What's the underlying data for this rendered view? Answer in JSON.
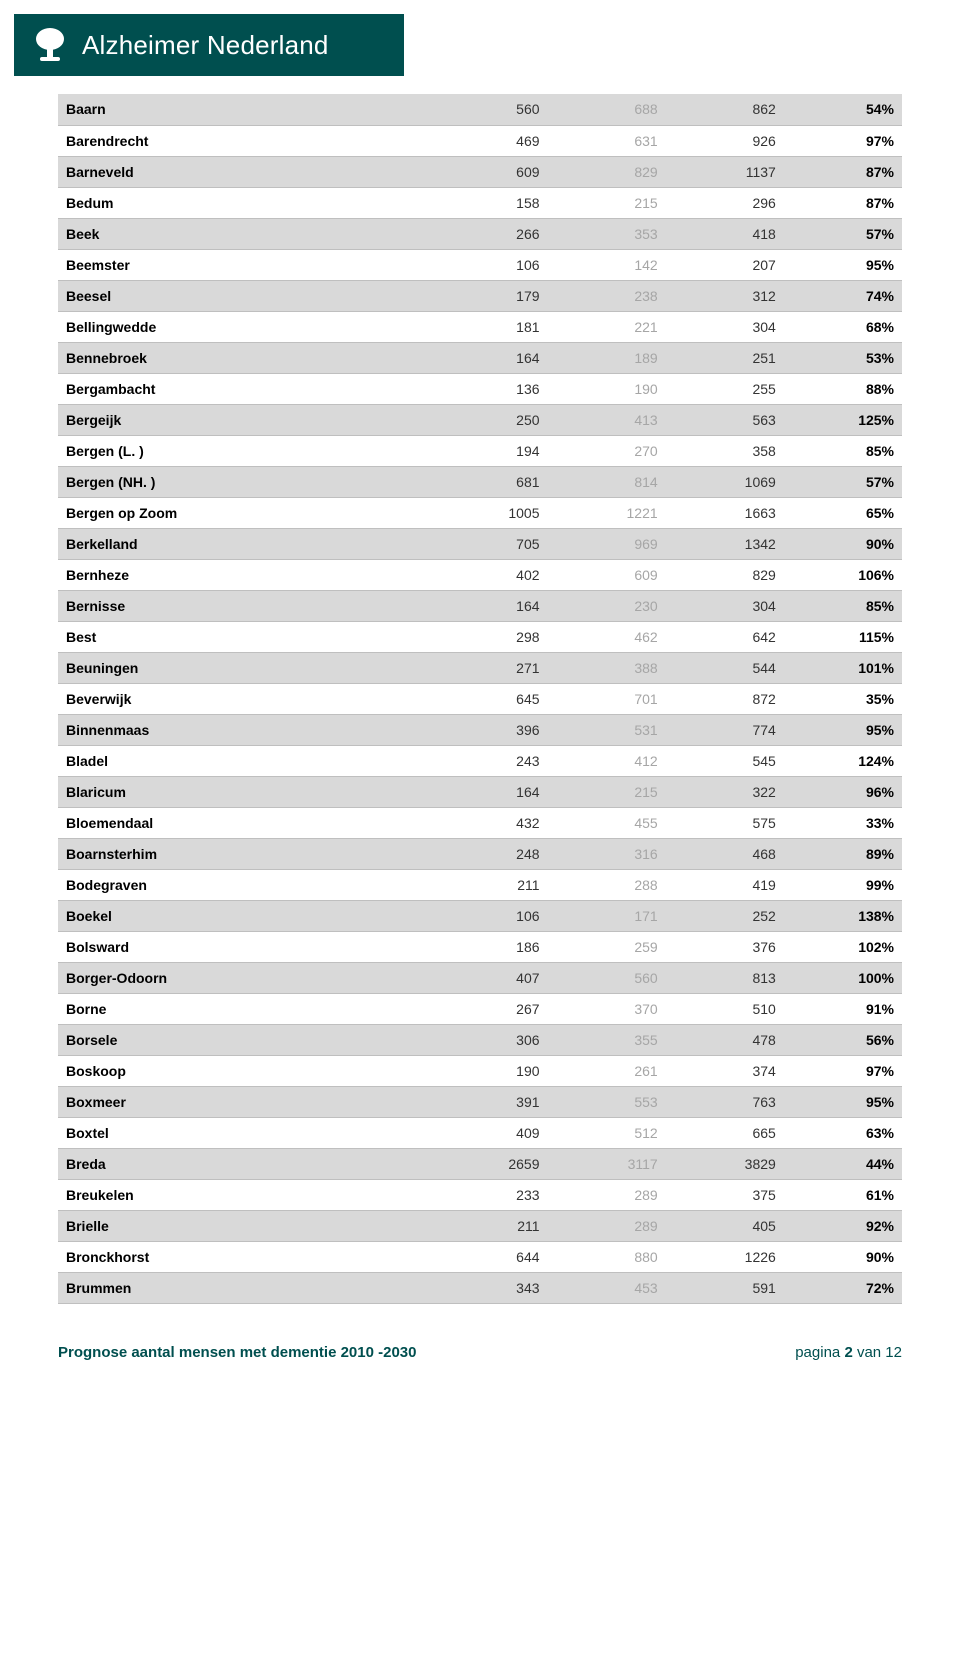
{
  "header": {
    "brand": "Alzheimer Nederland",
    "bg_color": "#004f4f",
    "text_color": "#ffffff"
  },
  "table": {
    "row_border_color": "#bfbfbf",
    "alt_bg_color": "#d9d9d9",
    "plain_bg_color": "#ffffff",
    "name_color": "#000000",
    "v1_color": "#333333",
    "v2_color": "#a6a6a6",
    "v3_color": "#333333",
    "pct_color": "#000000",
    "rows": [
      {
        "name": "Baarn",
        "v1": "560",
        "v2": "688",
        "v3": "862",
        "pct": "54%"
      },
      {
        "name": "Barendrecht",
        "v1": "469",
        "v2": "631",
        "v3": "926",
        "pct": "97%"
      },
      {
        "name": "Barneveld",
        "v1": "609",
        "v2": "829",
        "v3": "1137",
        "pct": "87%"
      },
      {
        "name": "Bedum",
        "v1": "158",
        "v2": "215",
        "v3": "296",
        "pct": "87%"
      },
      {
        "name": "Beek",
        "v1": "266",
        "v2": "353",
        "v3": "418",
        "pct": "57%"
      },
      {
        "name": "Beemster",
        "v1": "106",
        "v2": "142",
        "v3": "207",
        "pct": "95%"
      },
      {
        "name": "Beesel",
        "v1": "179",
        "v2": "238",
        "v3": "312",
        "pct": "74%"
      },
      {
        "name": "Bellingwedde",
        "v1": "181",
        "v2": "221",
        "v3": "304",
        "pct": "68%"
      },
      {
        "name": "Bennebroek",
        "v1": "164",
        "v2": "189",
        "v3": "251",
        "pct": "53%"
      },
      {
        "name": "Bergambacht",
        "v1": "136",
        "v2": "190",
        "v3": "255",
        "pct": "88%"
      },
      {
        "name": "Bergeijk",
        "v1": "250",
        "v2": "413",
        "v3": "563",
        "pct": "125%"
      },
      {
        "name": "Bergen (L. )",
        "v1": "194",
        "v2": "270",
        "v3": "358",
        "pct": "85%"
      },
      {
        "name": "Bergen (NH. )",
        "v1": "681",
        "v2": "814",
        "v3": "1069",
        "pct": "57%"
      },
      {
        "name": "Bergen op Zoom",
        "v1": "1005",
        "v2": "1221",
        "v3": "1663",
        "pct": "65%"
      },
      {
        "name": "Berkelland",
        "v1": "705",
        "v2": "969",
        "v3": "1342",
        "pct": "90%"
      },
      {
        "name": "Bernheze",
        "v1": "402",
        "v2": "609",
        "v3": "829",
        "pct": "106%"
      },
      {
        "name": "Bernisse",
        "v1": "164",
        "v2": "230",
        "v3": "304",
        "pct": "85%"
      },
      {
        "name": "Best",
        "v1": "298",
        "v2": "462",
        "v3": "642",
        "pct": "115%"
      },
      {
        "name": "Beuningen",
        "v1": "271",
        "v2": "388",
        "v3": "544",
        "pct": "101%"
      },
      {
        "name": "Beverwijk",
        "v1": "645",
        "v2": "701",
        "v3": "872",
        "pct": "35%"
      },
      {
        "name": "Binnenmaas",
        "v1": "396",
        "v2": "531",
        "v3": "774",
        "pct": "95%"
      },
      {
        "name": "Bladel",
        "v1": "243",
        "v2": "412",
        "v3": "545",
        "pct": "124%"
      },
      {
        "name": "Blaricum",
        "v1": "164",
        "v2": "215",
        "v3": "322",
        "pct": "96%"
      },
      {
        "name": "Bloemendaal",
        "v1": "432",
        "v2": "455",
        "v3": "575",
        "pct": "33%"
      },
      {
        "name": "Boarnsterhim",
        "v1": "248",
        "v2": "316",
        "v3": "468",
        "pct": "89%"
      },
      {
        "name": "Bodegraven",
        "v1": "211",
        "v2": "288",
        "v3": "419",
        "pct": "99%"
      },
      {
        "name": "Boekel",
        "v1": "106",
        "v2": "171",
        "v3": "252",
        "pct": "138%"
      },
      {
        "name": "Bolsward",
        "v1": "186",
        "v2": "259",
        "v3": "376",
        "pct": "102%"
      },
      {
        "name": "Borger-Odoorn",
        "v1": "407",
        "v2": "560",
        "v3": "813",
        "pct": "100%"
      },
      {
        "name": "Borne",
        "v1": "267",
        "v2": "370",
        "v3": "510",
        "pct": "91%"
      },
      {
        "name": "Borsele",
        "v1": "306",
        "v2": "355",
        "v3": "478",
        "pct": "56%"
      },
      {
        "name": "Boskoop",
        "v1": "190",
        "v2": "261",
        "v3": "374",
        "pct": "97%"
      },
      {
        "name": "Boxmeer",
        "v1": "391",
        "v2": "553",
        "v3": "763",
        "pct": "95%"
      },
      {
        "name": "Boxtel",
        "v1": "409",
        "v2": "512",
        "v3": "665",
        "pct": "63%"
      },
      {
        "name": "Breda",
        "v1": "2659",
        "v2": "3117",
        "v3": "3829",
        "pct": "44%"
      },
      {
        "name": "Breukelen",
        "v1": "233",
        "v2": "289",
        "v3": "375",
        "pct": "61%"
      },
      {
        "name": "Brielle",
        "v1": "211",
        "v2": "289",
        "v3": "405",
        "pct": "92%"
      },
      {
        "name": "Bronckhorst",
        "v1": "644",
        "v2": "880",
        "v3": "1226",
        "pct": "90%"
      },
      {
        "name": "Brummen",
        "v1": "343",
        "v2": "453",
        "v3": "591",
        "pct": "72%"
      }
    ]
  },
  "footer": {
    "left": "Prognose aantal mensen met dementie 2010 -2030",
    "left_color": "#004f4f",
    "right_prefix": "pagina ",
    "right_num": "2",
    "right_suffix": " van 12",
    "right_color": "#004f4f"
  }
}
